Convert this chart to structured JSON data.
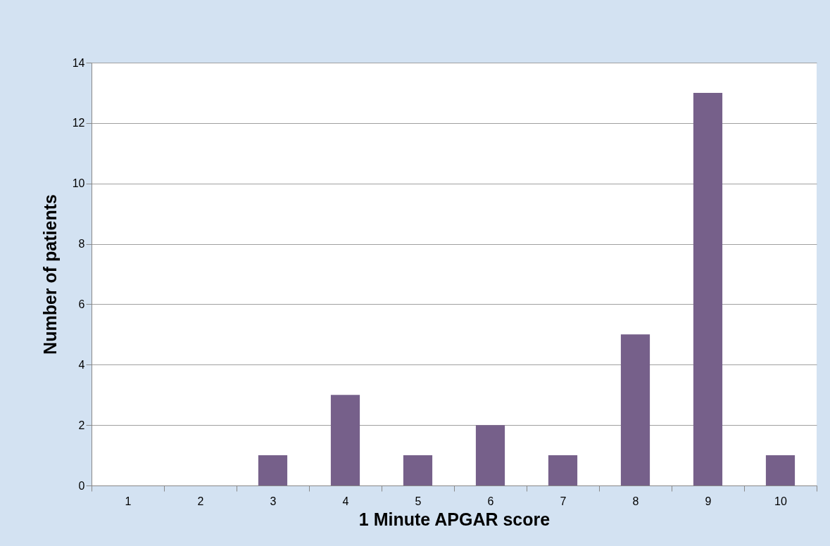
{
  "chart_data": {
    "type": "bar",
    "xlabel": "1 Minute APGAR score",
    "ylabel": "Number of patients",
    "categories": [
      "1",
      "2",
      "3",
      "4",
      "5",
      "6",
      "7",
      "8",
      "9",
      "10"
    ],
    "values": [
      0,
      0,
      1,
      3,
      1,
      2,
      1,
      5,
      13,
      1
    ],
    "color": "#76608a",
    "ylim": [
      0,
      14
    ],
    "yticks": [
      0,
      2,
      4,
      6,
      8,
      10,
      12,
      14
    ],
    "grid": "y"
  }
}
